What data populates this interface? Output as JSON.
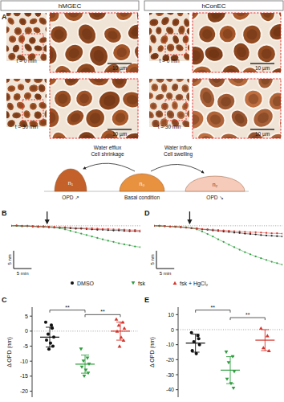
{
  "headers": [
    "hMGEC",
    "hConEC"
  ],
  "micrographs": {
    "panel": "A",
    "times": [
      "t = 0 min",
      "t = 30 min"
    ],
    "scale_bar": "10 µm"
  },
  "schematic": {
    "left": {
      "arrow_labels": [
        "Water efflux",
        "Cell shrinkage"
      ],
      "index": "n₁",
      "opd": "OPD ↗"
    },
    "middle": {
      "index": "n₀",
      "label": "Basal condition"
    },
    "right": {
      "arrow_labels": [
        "Water influx",
        "Cell swelling"
      ],
      "index": "n₂",
      "opd": "OPD ↘"
    }
  },
  "chart_data": [
    {
      "type": "line",
      "panel": "B",
      "tick_labels": false,
      "marker": "circle",
      "xlim": [
        0,
        36
      ],
      "ylim": [
        -12,
        2
      ],
      "reference_line": 0,
      "treatment_time": 10,
      "scale_bars": {
        "x": {
          "value": 5,
          "label": "5 min"
        },
        "y": {
          "value": 5,
          "label": "5 nm"
        }
      },
      "x": [
        0,
        1.5,
        3,
        4.5,
        6,
        7.5,
        9,
        10.5,
        12,
        13.5,
        15,
        16.5,
        18,
        19.5,
        21,
        22.5,
        24,
        25.5,
        27,
        28.5,
        30,
        31.5,
        33,
        34.5,
        36
      ],
      "series": [
        {
          "color": "#111111",
          "values": [
            0,
            0,
            -0.1,
            -0.1,
            -0.2,
            -0.3,
            -0.3,
            -0.4,
            -0.5,
            -0.5,
            -0.6,
            -0.7,
            -0.8,
            -0.8,
            -0.9,
            -1.0,
            -1.1,
            -1.1,
            -1.2,
            -1.3,
            -1.3,
            -1.4,
            -1.5,
            -1.5,
            -1.6
          ]
        },
        {
          "color": "#2f9e3f",
          "values": [
            0,
            0,
            -0.1,
            0,
            -0.1,
            -0.1,
            -0.2,
            -0.2,
            -0.4,
            -0.7,
            -1.0,
            -1.4,
            -1.8,
            -2.2,
            -2.6,
            -3.0,
            -3.4,
            -3.8,
            -4.2,
            -4.5,
            -4.9,
            -5.2,
            -5.5,
            -5.8,
            -6.0
          ]
        },
        {
          "color": "#d6332b",
          "values": [
            0,
            0.1,
            0,
            0,
            -0.1,
            -0.2,
            -0.1,
            -0.3,
            -0.3,
            -0.4,
            -0.4,
            -0.5,
            -0.6,
            -0.6,
            -0.7,
            -0.7,
            -0.8,
            -0.9,
            -0.9,
            -1.0,
            -1.0,
            -1.1,
            -1.2,
            -1.2,
            -1.3
          ]
        }
      ]
    },
    {
      "type": "line",
      "panel": "D",
      "tick_labels": false,
      "marker": "circle",
      "xlim": [
        0,
        36
      ],
      "ylim": [
        -12,
        2
      ],
      "reference_line": 0,
      "treatment_time": 10,
      "scale_bars": {
        "x": {
          "value": 5,
          "label": "5 min"
        },
        "y": {
          "value": 5,
          "label": "5 nm"
        }
      },
      "x": [
        0,
        1.5,
        3,
        4.5,
        6,
        7.5,
        9,
        10.5,
        12,
        13.5,
        15,
        16.5,
        18,
        19.5,
        21,
        22.5,
        24,
        25.5,
        27,
        28.5,
        30,
        31.5,
        33,
        34.5,
        36
      ],
      "series": [
        {
          "color": "#111111",
          "values": [
            0,
            0,
            -0.1,
            -0.2,
            -0.3,
            -0.4,
            -0.5,
            -0.7,
            -0.8,
            -1.0,
            -1.1,
            -1.3,
            -1.4,
            -1.6,
            -1.7,
            -1.9,
            -2.0,
            -2.2,
            -2.3,
            -2.4,
            -2.6,
            -2.7,
            -2.8,
            -2.9,
            -3.0
          ]
        },
        {
          "color": "#2f9e3f",
          "values": [
            0,
            -0.1,
            -0.1,
            -0.2,
            -0.2,
            -0.3,
            -0.4,
            -0.6,
            -1.0,
            -1.6,
            -2.3,
            -3.0,
            -3.8,
            -4.5,
            -5.3,
            -6.0,
            -6.7,
            -7.4,
            -8.0,
            -8.6,
            -9.1,
            -9.6,
            -10.1,
            -10.5,
            -10.9
          ]
        },
        {
          "color": "#d6332b",
          "values": [
            0,
            0,
            -0.1,
            -0.2,
            -0.2,
            -0.3,
            -0.5,
            -0.6,
            -0.7,
            -0.9,
            -1.0,
            -1.1,
            -1.2,
            -1.3,
            -1.4,
            -1.5,
            -1.6,
            -1.7,
            -1.8,
            -1.8,
            -1.9,
            -2.0,
            -2.1,
            -2.1,
            -2.2
          ]
        }
      ]
    },
    {
      "type": "scatter",
      "panel": "C",
      "y_label": "Δ OPD (nm)",
      "ylim": [
        -22,
        8
      ],
      "yticks": [
        5,
        0,
        -5,
        -10,
        -15,
        -20
      ],
      "reference_line": 0,
      "legend": "top",
      "series": [
        {
          "name": "DMSO",
          "color": "#111111",
          "marker": "circle",
          "values": [
            3,
            1,
            -1,
            -2,
            -3,
            -4,
            -5,
            -6,
            2
          ],
          "mean": -2,
          "sd": 3.3
        },
        {
          "name": "fsk",
          "color": "#2f9e3f",
          "marker": "triangle-down",
          "values": [
            -6,
            -9,
            -10,
            -11,
            -12,
            -13,
            -14,
            -15
          ],
          "mean": -11,
          "sd": 3
        },
        {
          "name": "fsk + HgCl₂",
          "color": "#d6332b",
          "marker": "triangle-up",
          "values": [
            4,
            3,
            2,
            1,
            0,
            -2,
            -3,
            -5
          ],
          "mean": 0,
          "sd": 3
        }
      ],
      "significance": [
        {
          "from": 0,
          "to": 1,
          "y": 7,
          "label": "**"
        },
        {
          "from": 1,
          "to": 2,
          "y": 5.5,
          "label": "**"
        }
      ]
    },
    {
      "type": "scatter",
      "panel": "E",
      "y_label": "Δ OPD (nm)",
      "ylim": [
        -45,
        15
      ],
      "yticks": [
        10,
        0,
        -10,
        -20,
        -30,
        -40
      ],
      "reference_line": 0,
      "series": [
        {
          "color": "#111111",
          "marker": "circle",
          "values": [
            -2,
            -4,
            -8,
            -10,
            -14,
            -16,
            -6
          ],
          "mean": -9,
          "sd": 6
        },
        {
          "color": "#2f9e3f",
          "marker": "triangle-down",
          "values": [
            -15,
            -18,
            -22,
            -28,
            -33,
            -36,
            -39
          ],
          "mean": -27,
          "sd": 9
        },
        {
          "color": "#d6332b",
          "marker": "triangle-up",
          "values": [
            1,
            -4,
            -12,
            -14
          ],
          "mean": -7,
          "sd": 7
        }
      ],
      "significance": [
        {
          "from": 0,
          "to": 1,
          "y": 13,
          "label": "**"
        },
        {
          "from": 1,
          "to": 2,
          "y": 8,
          "label": "**"
        }
      ]
    }
  ]
}
